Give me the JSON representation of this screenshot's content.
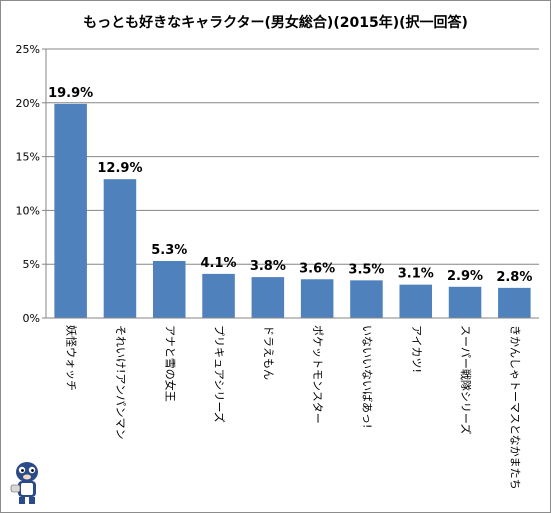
{
  "chart_data": {
    "type": "bar",
    "title": "もっとも好きなキャラクター(男女総合)(2015年)(択一回答)",
    "categories": [
      "妖怪ウォッチ",
      "それいけ!アンパンマン",
      "アナと雪の女王",
      "プリキュアシリーズ",
      "ドラえもん",
      "ポケットモンスター",
      "いないいないばあっ!",
      "アイカツ!",
      "スーパー戦隊シリーズ",
      "きかんしゃトーマスとなかまたち"
    ],
    "values": [
      19.9,
      12.9,
      5.3,
      4.1,
      3.8,
      3.6,
      3.5,
      3.1,
      2.9,
      2.8
    ],
    "data_labels": [
      "19.9%",
      "12.9%",
      "5.3%",
      "4.1%",
      "3.8%",
      "3.6%",
      "3.5%",
      "3.1%",
      "2.9%",
      "2.8%"
    ],
    "yticks": [
      0,
      5,
      10,
      15,
      20,
      25
    ],
    "ytick_labels": [
      "0%",
      "5%",
      "10%",
      "15%",
      "20%",
      "25%"
    ],
    "ylim": [
      0,
      25
    ],
    "bar_color": "#4f81bd",
    "grid": true,
    "legend": "none"
  },
  "mascot": {
    "icon": "mascot-logo-icon"
  }
}
